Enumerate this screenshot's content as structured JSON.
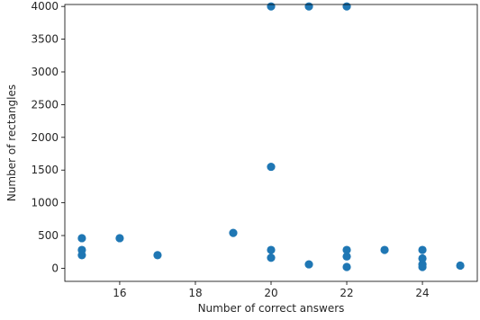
{
  "chart_data": {
    "type": "scatter",
    "title": "",
    "xlabel": "Number of correct answers",
    "ylabel": "Number of rectangles",
    "xlim": [
      14.55,
      25.45
    ],
    "ylim": [
      -200,
      4030
    ],
    "x_ticks": [
      16,
      18,
      20,
      22,
      24
    ],
    "y_ticks": [
      0,
      500,
      1000,
      1500,
      2000,
      2500,
      3000,
      3500,
      4000
    ],
    "grid": false,
    "marker_color": "#1f77b4",
    "series": [
      {
        "points": [
          {
            "x": 15,
            "y": 460
          },
          {
            "x": 15,
            "y": 280
          },
          {
            "x": 15,
            "y": 200
          },
          {
            "x": 16,
            "y": 460
          },
          {
            "x": 17,
            "y": 200
          },
          {
            "x": 19,
            "y": 540
          },
          {
            "x": 20,
            "y": 4000
          },
          {
            "x": 20,
            "y": 1550
          },
          {
            "x": 20,
            "y": 280
          },
          {
            "x": 20,
            "y": 160
          },
          {
            "x": 21,
            "y": 4000
          },
          {
            "x": 21,
            "y": 60
          },
          {
            "x": 22,
            "y": 4000
          },
          {
            "x": 22,
            "y": 280
          },
          {
            "x": 22,
            "y": 180
          },
          {
            "x": 22,
            "y": 20
          },
          {
            "x": 23,
            "y": 280
          },
          {
            "x": 24,
            "y": 280
          },
          {
            "x": 24,
            "y": 150
          },
          {
            "x": 24,
            "y": 60
          },
          {
            "x": 24,
            "y": 20
          },
          {
            "x": 25,
            "y": 40
          }
        ]
      }
    ]
  }
}
